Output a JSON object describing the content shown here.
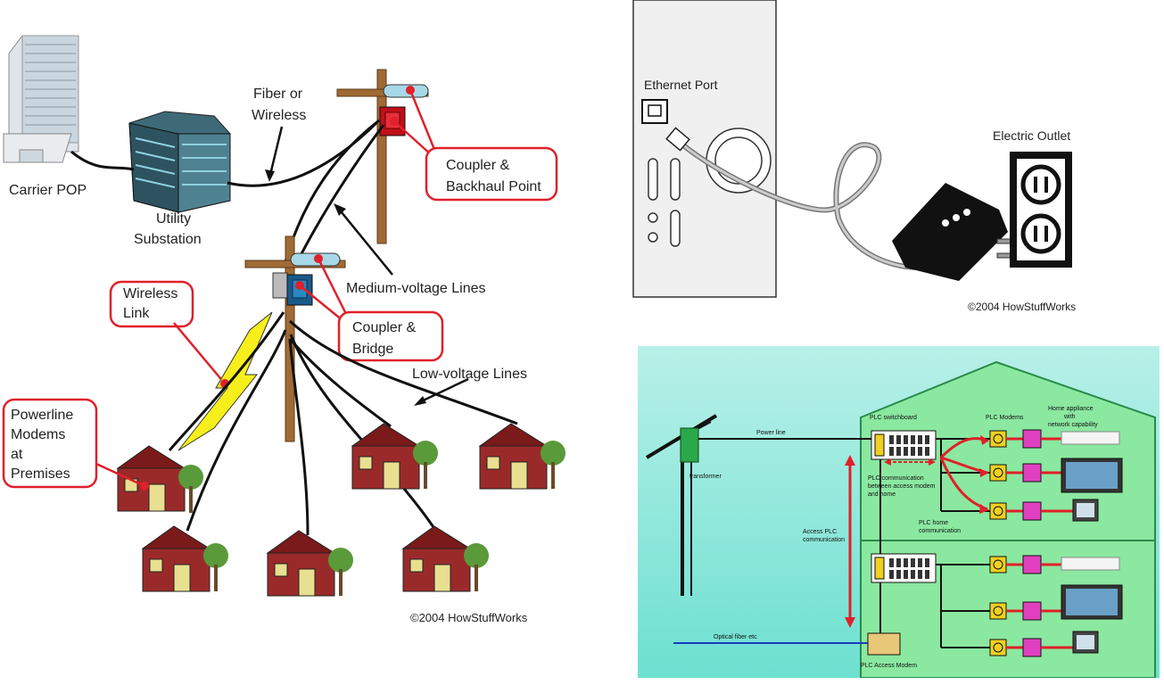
{
  "left": {
    "carrier_pop": "Carrier POP",
    "utility_substation_1": "Utility",
    "utility_substation_2": "Substation",
    "fiber_1": "Fiber or",
    "fiber_2": "Wireless",
    "coupler_backhaul_1": "Coupler &",
    "coupler_backhaul_2": "Backhaul Point",
    "medium_voltage": "Medium-voltage Lines",
    "wireless_link_1": "Wireless",
    "wireless_link_2": "Link",
    "coupler_bridge_1": "Coupler &",
    "coupler_bridge_2": "Bridge",
    "low_voltage": "Low-voltage Lines",
    "powerline_1": "Powerline",
    "powerline_2": "Modems",
    "powerline_3": "at",
    "powerline_4": "Premises",
    "copyright": "©2004 HowStuffWorks"
  },
  "top_right": {
    "ethernet_port": "Ethernet Port",
    "electric_outlet": "Electric Outlet",
    "copyright": "©2004 HowStuffWorks"
  },
  "bottom_right": {
    "home_appliance_1": "Home appliance",
    "home_appliance_2": "with",
    "home_appliance_3": "network capability",
    "plc_switchboard": "PLC switchboard",
    "plc_modems": "PLC Modems",
    "power_line": "Power line",
    "transformer": "transformer",
    "plc_comm_1": "PLC communication",
    "plc_comm_2": "between access modem",
    "plc_comm_3": "and home",
    "plc_home_1": "PLC home",
    "plc_home_2": "communication",
    "access_plc_1": "Access PLC",
    "access_plc_2": "communication",
    "optical_fiber": "Optical fiber etc",
    "plc_access_modem": "PLC Access Modem"
  },
  "colors": {
    "callout_red": "#e0202a",
    "house_red": "#9a2a2a",
    "pole_brown": "#8a5a2a",
    "green_panel": "#8be8a0",
    "magenta": "#e040c0",
    "outlet_yellow": "#f0d020"
  }
}
